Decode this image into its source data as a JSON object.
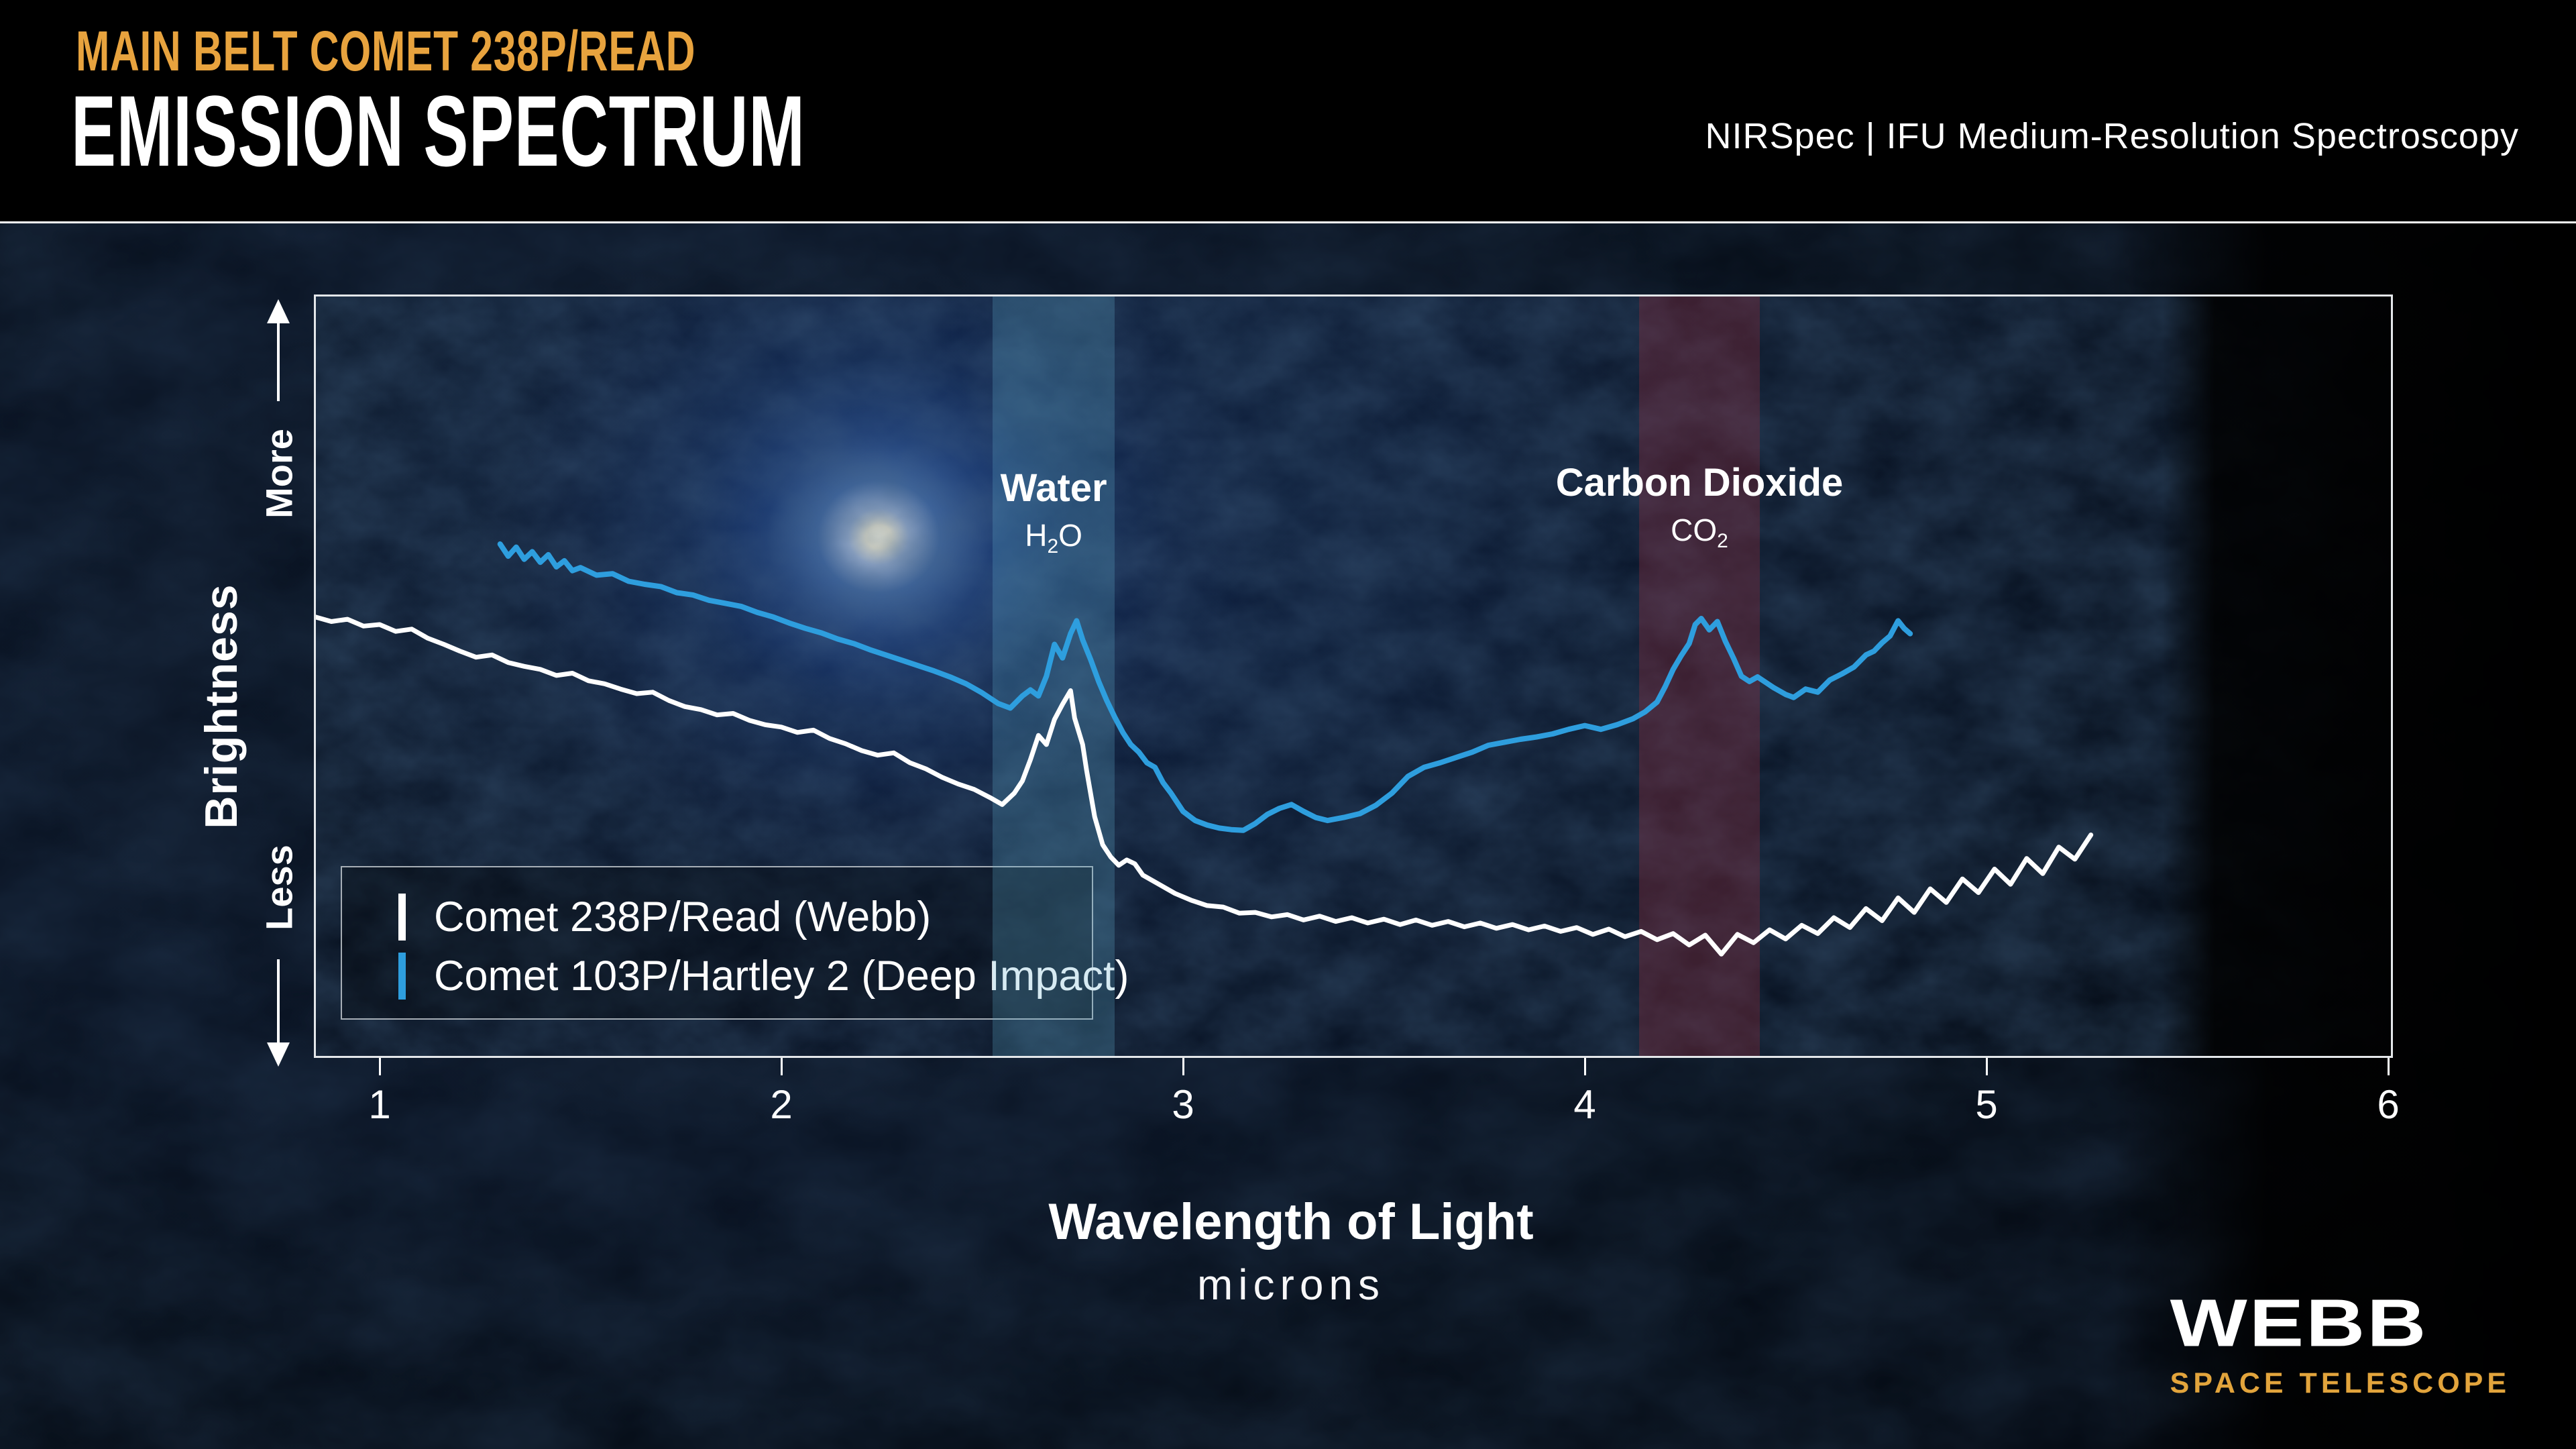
{
  "header": {
    "kicker": "MAIN BELT COMET 238P/READ",
    "title": "EMISSION SPECTRUM",
    "instrument": "NIRSpec | IFU Medium-Resolution Spectroscopy"
  },
  "colors": {
    "accent_orange": "#E8A33E",
    "webb_gold": "#E2A43C",
    "series_white": "#FFFFFF",
    "series_blue": "#2E9EDE",
    "water_band": "rgba(96,175,205,0.26)",
    "co2_band": "rgba(170,45,60,0.30)",
    "plot_border": "#E4E7EA"
  },
  "legend": {
    "items": [
      {
        "label": "Comet 238P/Read (Webb)",
        "color": "#FFFFFF"
      },
      {
        "label": "Comet 103P/Hartley 2 (Deep Impact)",
        "color": "#2E9EDE"
      }
    ]
  },
  "logo": {
    "title": "WEBB",
    "subtitle": "SPACE TELESCOPE"
  },
  "chart_data": {
    "type": "line",
    "xlabel": "Wavelength of Light",
    "x_unit_label": "microns",
    "ylabel": "Brightness",
    "y_more_label": "More",
    "y_less_label": "Less",
    "x_ticks": [
      1,
      2,
      3,
      4,
      5,
      6
    ],
    "xlim": [
      0.84,
      6.0
    ],
    "ylim": [
      0,
      100
    ],
    "grid": false,
    "legend_position": "inside-bottom-left",
    "y_axis_note": "relative brightness, unlabeled axis (More/Less arrows)",
    "bands": [
      {
        "label": "Water",
        "formula": {
          "pre": "H",
          "sub": "2",
          "post": "O"
        },
        "x0": 2.526,
        "x1": 2.83,
        "color": "rgba(96,175,205,0.26)",
        "label_top": 252
      },
      {
        "label": "Carbon Dioxide",
        "formula": {
          "pre": "CO",
          "sub": "2",
          "post": ""
        },
        "x0": 4.135,
        "x1": 4.436,
        "color": "rgba(170,45,60,0.30)",
        "label_top": 244
      }
    ],
    "series": [
      {
        "name": "Comet 238P/Read (Webb)",
        "color": "#FFFFFF",
        "stroke_width": 7,
        "points": [
          [
            0.84,
            57.8
          ],
          [
            0.88,
            57.2
          ],
          [
            0.92,
            57.5
          ],
          [
            0.96,
            56.6
          ],
          [
            1.0,
            56.8
          ],
          [
            1.04,
            55.9
          ],
          [
            1.08,
            56.2
          ],
          [
            1.12,
            55.0
          ],
          [
            1.16,
            54.2
          ],
          [
            1.2,
            53.3
          ],
          [
            1.24,
            52.5
          ],
          [
            1.28,
            52.8
          ],
          [
            1.32,
            51.8
          ],
          [
            1.36,
            51.3
          ],
          [
            1.4,
            50.9
          ],
          [
            1.44,
            50.1
          ],
          [
            1.48,
            50.4
          ],
          [
            1.52,
            49.4
          ],
          [
            1.56,
            49.0
          ],
          [
            1.6,
            48.3
          ],
          [
            1.64,
            47.7
          ],
          [
            1.68,
            47.9
          ],
          [
            1.72,
            46.8
          ],
          [
            1.76,
            46.0
          ],
          [
            1.8,
            45.6
          ],
          [
            1.84,
            44.9
          ],
          [
            1.88,
            45.1
          ],
          [
            1.92,
            44.2
          ],
          [
            1.96,
            43.6
          ],
          [
            2.0,
            43.3
          ],
          [
            2.04,
            42.6
          ],
          [
            2.08,
            42.9
          ],
          [
            2.12,
            41.8
          ],
          [
            2.16,
            41.1
          ],
          [
            2.2,
            40.2
          ],
          [
            2.24,
            39.6
          ],
          [
            2.28,
            39.9
          ],
          [
            2.32,
            38.6
          ],
          [
            2.36,
            37.8
          ],
          [
            2.4,
            36.7
          ],
          [
            2.44,
            35.8
          ],
          [
            2.48,
            35.1
          ],
          [
            2.52,
            34.0
          ],
          [
            2.55,
            33.1
          ],
          [
            2.58,
            34.6
          ],
          [
            2.6,
            36.2
          ],
          [
            2.62,
            39.0
          ],
          [
            2.64,
            42.2
          ],
          [
            2.66,
            41.0
          ],
          [
            2.68,
            44.3
          ],
          [
            2.7,
            46.3
          ],
          [
            2.72,
            48.1
          ],
          [
            2.73,
            44.5
          ],
          [
            2.75,
            41.0
          ],
          [
            2.76,
            37.6
          ],
          [
            2.78,
            31.5
          ],
          [
            2.8,
            27.8
          ],
          [
            2.82,
            26.2
          ],
          [
            2.84,
            25.1
          ],
          [
            2.86,
            25.8
          ],
          [
            2.88,
            25.3
          ],
          [
            2.9,
            23.8
          ],
          [
            2.94,
            22.6
          ],
          [
            2.98,
            21.4
          ],
          [
            3.02,
            20.5
          ],
          [
            3.06,
            19.8
          ],
          [
            3.1,
            19.6
          ],
          [
            3.14,
            18.8
          ],
          [
            3.18,
            18.9
          ],
          [
            3.22,
            18.3
          ],
          [
            3.26,
            18.6
          ],
          [
            3.3,
            17.9
          ],
          [
            3.34,
            18.4
          ],
          [
            3.38,
            17.7
          ],
          [
            3.42,
            18.2
          ],
          [
            3.46,
            17.5
          ],
          [
            3.5,
            18.0
          ],
          [
            3.54,
            17.3
          ],
          [
            3.58,
            17.9
          ],
          [
            3.62,
            17.2
          ],
          [
            3.66,
            17.7
          ],
          [
            3.7,
            17.0
          ],
          [
            3.74,
            17.5
          ],
          [
            3.78,
            16.8
          ],
          [
            3.82,
            17.3
          ],
          [
            3.86,
            16.6
          ],
          [
            3.9,
            17.1
          ],
          [
            3.94,
            16.4
          ],
          [
            3.98,
            16.9
          ],
          [
            4.02,
            16.0
          ],
          [
            4.06,
            16.7
          ],
          [
            4.1,
            15.7
          ],
          [
            4.14,
            16.4
          ],
          [
            4.18,
            15.3
          ],
          [
            4.22,
            16.1
          ],
          [
            4.26,
            14.6
          ],
          [
            4.3,
            15.9
          ],
          [
            4.34,
            13.4
          ],
          [
            4.38,
            16.0
          ],
          [
            4.42,
            14.9
          ],
          [
            4.46,
            16.6
          ],
          [
            4.5,
            15.4
          ],
          [
            4.54,
            17.2
          ],
          [
            4.58,
            16.1
          ],
          [
            4.62,
            18.2
          ],
          [
            4.66,
            16.9
          ],
          [
            4.7,
            19.4
          ],
          [
            4.74,
            17.8
          ],
          [
            4.78,
            20.8
          ],
          [
            4.82,
            18.9
          ],
          [
            4.86,
            22.0
          ],
          [
            4.9,
            20.2
          ],
          [
            4.94,
            23.3
          ],
          [
            4.98,
            21.5
          ],
          [
            5.02,
            24.6
          ],
          [
            5.06,
            22.6
          ],
          [
            5.1,
            26.0
          ],
          [
            5.14,
            24.0
          ],
          [
            5.18,
            27.5
          ],
          [
            5.22,
            25.9
          ],
          [
            5.26,
            29.1
          ]
        ]
      },
      {
        "name": "Comet 103P/Hartley 2 (Deep Impact)",
        "color": "#2E9EDE",
        "stroke_width": 8,
        "points": [
          [
            1.3,
            67.4
          ],
          [
            1.32,
            65.8
          ],
          [
            1.34,
            67.0
          ],
          [
            1.36,
            65.4
          ],
          [
            1.38,
            66.4
          ],
          [
            1.4,
            65.0
          ],
          [
            1.42,
            66.0
          ],
          [
            1.44,
            64.4
          ],
          [
            1.46,
            65.2
          ],
          [
            1.48,
            63.9
          ],
          [
            1.5,
            64.3
          ],
          [
            1.54,
            63.3
          ],
          [
            1.58,
            63.5
          ],
          [
            1.62,
            62.5
          ],
          [
            1.66,
            62.1
          ],
          [
            1.7,
            61.8
          ],
          [
            1.74,
            61.0
          ],
          [
            1.78,
            60.7
          ],
          [
            1.82,
            60.0
          ],
          [
            1.86,
            59.6
          ],
          [
            1.9,
            59.2
          ],
          [
            1.94,
            58.4
          ],
          [
            1.98,
            57.8
          ],
          [
            2.02,
            57.0
          ],
          [
            2.06,
            56.3
          ],
          [
            2.1,
            55.7
          ],
          [
            2.14,
            54.9
          ],
          [
            2.18,
            54.3
          ],
          [
            2.22,
            53.5
          ],
          [
            2.26,
            52.8
          ],
          [
            2.3,
            52.1
          ],
          [
            2.34,
            51.4
          ],
          [
            2.38,
            50.7
          ],
          [
            2.42,
            49.9
          ],
          [
            2.46,
            49.0
          ],
          [
            2.5,
            47.8
          ],
          [
            2.54,
            46.4
          ],
          [
            2.57,
            45.8
          ],
          [
            2.6,
            47.4
          ],
          [
            2.62,
            48.2
          ],
          [
            2.64,
            47.4
          ],
          [
            2.66,
            50.0
          ],
          [
            2.68,
            54.2
          ],
          [
            2.7,
            52.4
          ],
          [
            2.72,
            55.6
          ],
          [
            2.735,
            57.3
          ],
          [
            2.75,
            54.8
          ],
          [
            2.77,
            52.2
          ],
          [
            2.79,
            49.3
          ],
          [
            2.81,
            46.8
          ],
          [
            2.83,
            44.6
          ],
          [
            2.85,
            42.6
          ],
          [
            2.87,
            41.0
          ],
          [
            2.89,
            40.0
          ],
          [
            2.91,
            38.6
          ],
          [
            2.93,
            38.0
          ],
          [
            2.95,
            36.0
          ],
          [
            2.97,
            34.6
          ],
          [
            3.0,
            32.2
          ],
          [
            3.03,
            31.0
          ],
          [
            3.06,
            30.4
          ],
          [
            3.09,
            30.0
          ],
          [
            3.12,
            29.8
          ],
          [
            3.15,
            29.7
          ],
          [
            3.18,
            30.6
          ],
          [
            3.21,
            31.8
          ],
          [
            3.24,
            32.6
          ],
          [
            3.27,
            33.1
          ],
          [
            3.3,
            32.2
          ],
          [
            3.33,
            31.4
          ],
          [
            3.36,
            31.0
          ],
          [
            3.4,
            31.4
          ],
          [
            3.44,
            31.9
          ],
          [
            3.48,
            33.0
          ],
          [
            3.52,
            34.6
          ],
          [
            3.56,
            36.8
          ],
          [
            3.6,
            38.0
          ],
          [
            3.64,
            38.6
          ],
          [
            3.68,
            39.3
          ],
          [
            3.72,
            40.0
          ],
          [
            3.76,
            40.9
          ],
          [
            3.8,
            41.3
          ],
          [
            3.84,
            41.7
          ],
          [
            3.88,
            42.0
          ],
          [
            3.92,
            42.4
          ],
          [
            3.96,
            43.0
          ],
          [
            4.0,
            43.5
          ],
          [
            4.04,
            43.0
          ],
          [
            4.08,
            43.6
          ],
          [
            4.12,
            44.4
          ],
          [
            4.15,
            45.3
          ],
          [
            4.18,
            46.6
          ],
          [
            4.2,
            48.6
          ],
          [
            4.22,
            50.9
          ],
          [
            4.24,
            52.7
          ],
          [
            4.26,
            54.3
          ],
          [
            4.275,
            56.8
          ],
          [
            4.29,
            57.6
          ],
          [
            4.31,
            56.1
          ],
          [
            4.33,
            57.2
          ],
          [
            4.35,
            54.6
          ],
          [
            4.37,
            52.4
          ],
          [
            4.39,
            50.0
          ],
          [
            4.41,
            49.3
          ],
          [
            4.43,
            49.9
          ],
          [
            4.45,
            49.2
          ],
          [
            4.47,
            48.5
          ],
          [
            4.5,
            47.6
          ],
          [
            4.52,
            47.2
          ],
          [
            4.55,
            48.3
          ],
          [
            4.58,
            47.9
          ],
          [
            4.61,
            49.5
          ],
          [
            4.64,
            50.3
          ],
          [
            4.67,
            51.2
          ],
          [
            4.7,
            52.8
          ],
          [
            4.72,
            53.3
          ],
          [
            4.74,
            54.4
          ],
          [
            4.76,
            55.3
          ],
          [
            4.78,
            57.3
          ],
          [
            4.795,
            56.3
          ],
          [
            4.81,
            55.6
          ]
        ]
      }
    ]
  }
}
